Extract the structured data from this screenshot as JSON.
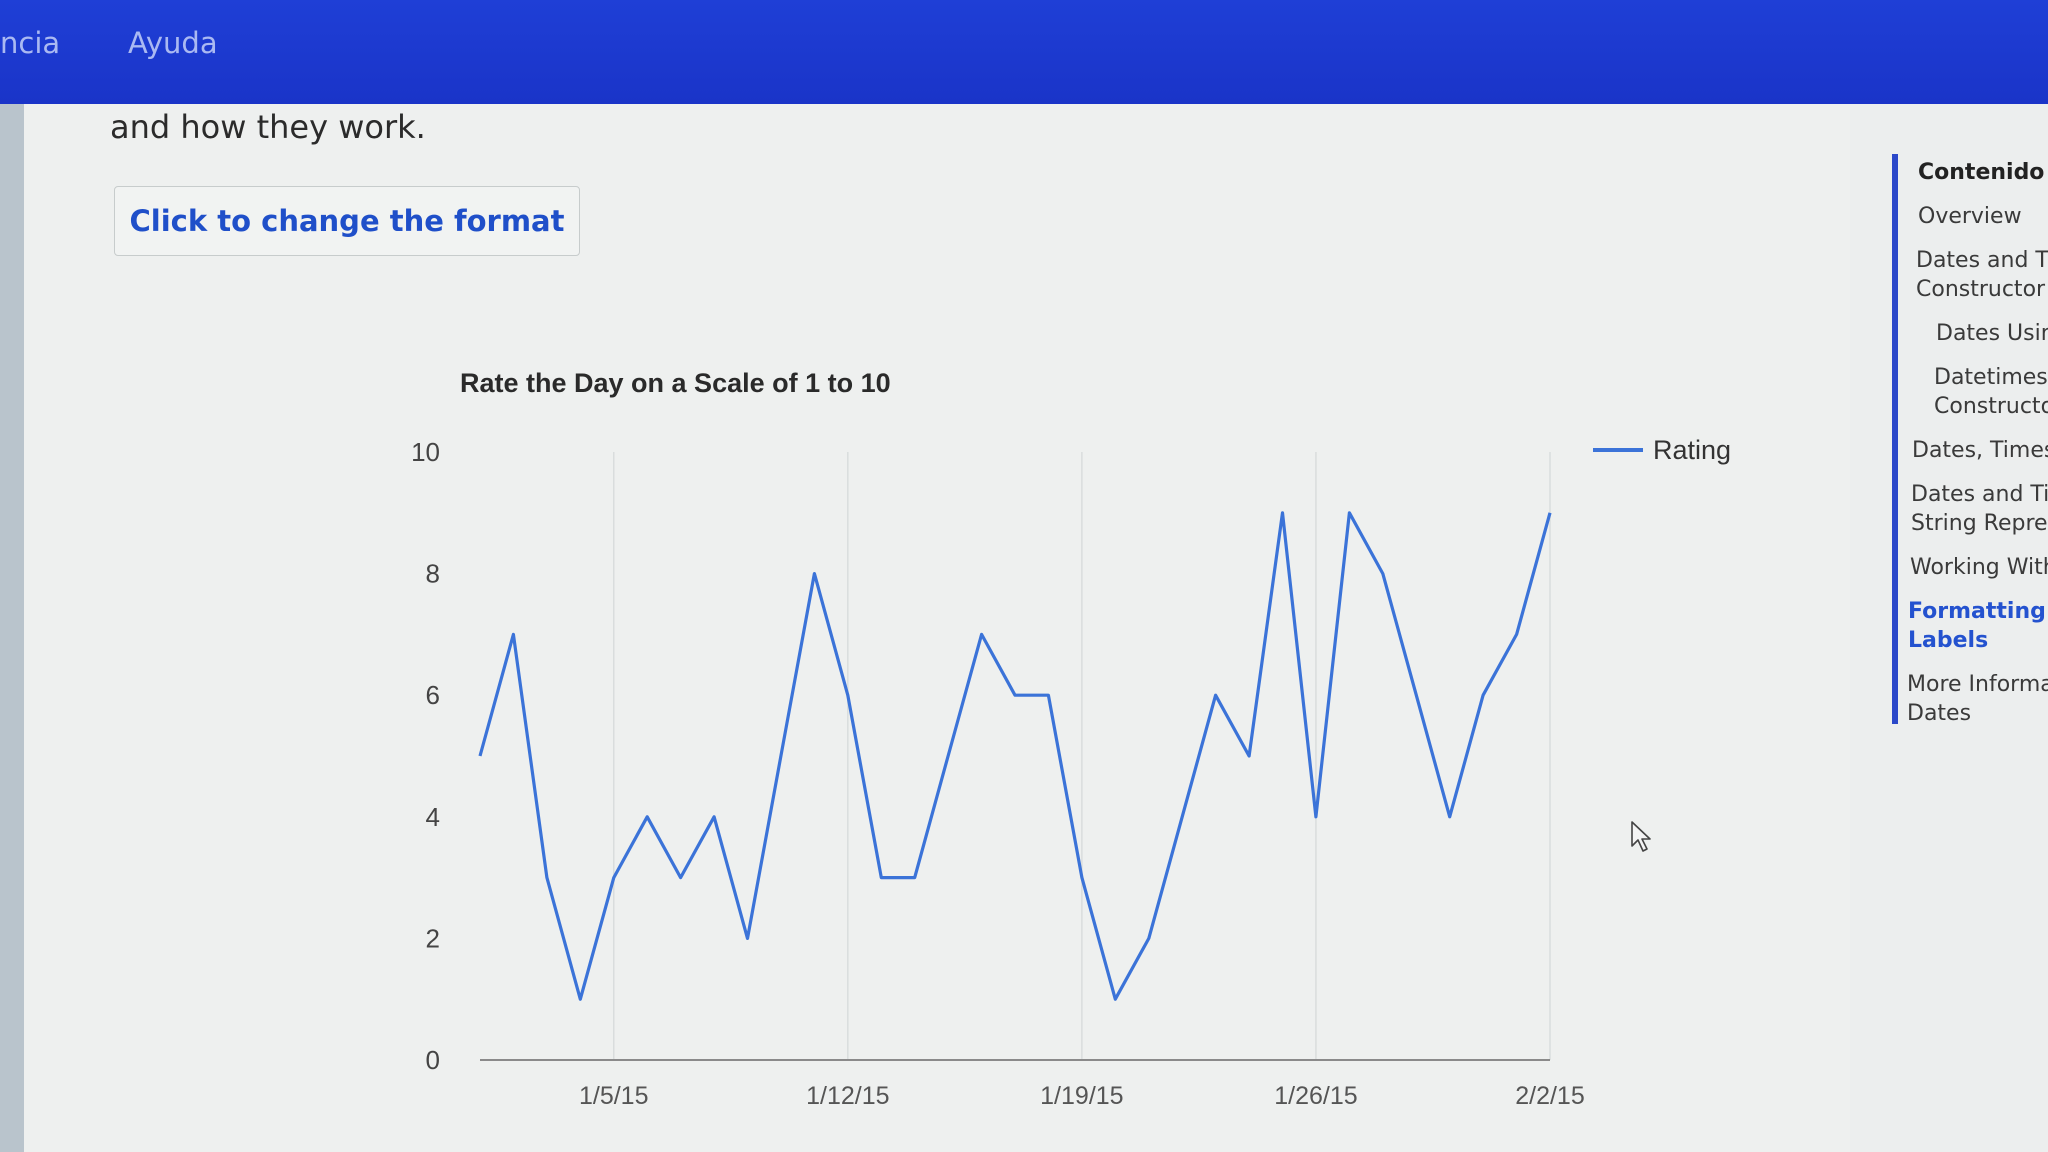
{
  "header": {
    "nav_partial": "ncia",
    "nav_help": "Ayuda"
  },
  "content": {
    "intro_text": "and how they work.",
    "format_button_label": "Click to change the format"
  },
  "chart_data": {
    "type": "line",
    "title": "Rate the Day on a Scale of 1 to 10",
    "xlabel": "",
    "ylabel": "",
    "x": [
      "2015-01-01",
      "2015-01-02",
      "2015-01-03",
      "2015-01-04",
      "2015-01-05",
      "2015-01-06",
      "2015-01-07",
      "2015-01-08",
      "2015-01-09",
      "2015-01-10",
      "2015-01-11",
      "2015-01-12",
      "2015-01-13",
      "2015-01-14",
      "2015-01-15",
      "2015-01-16",
      "2015-01-17",
      "2015-01-18",
      "2015-01-19",
      "2015-01-20",
      "2015-01-21",
      "2015-01-22",
      "2015-01-23",
      "2015-01-24",
      "2015-01-25",
      "2015-01-26",
      "2015-01-27",
      "2015-01-28",
      "2015-01-29",
      "2015-01-30",
      "2015-01-31",
      "2015-02-01",
      "2015-02-02"
    ],
    "series": [
      {
        "name": "Rating",
        "values": [
          5,
          7,
          3,
          1,
          3,
          4,
          3,
          4,
          2,
          5,
          8,
          6,
          3,
          3,
          5,
          7,
          6,
          6,
          3,
          1,
          2,
          4,
          6,
          5,
          9,
          4,
          9,
          8,
          6,
          4,
          6,
          7,
          9
        ]
      }
    ],
    "xticks": [
      "1/5/15",
      "1/12/15",
      "1/19/15",
      "1/26/15",
      "2/2/15"
    ],
    "yticks": [
      "0",
      "2",
      "4",
      "6",
      "8",
      "10"
    ],
    "ylim": [
      0,
      10
    ],
    "grid": "vertical",
    "legend": "right",
    "line_color": "#3b73d8"
  },
  "sidebar": {
    "heading": "Contenido",
    "items": [
      "Overview",
      "Dates and Tir",
      "Constructor",
      "Dates Using",
      "Datetimes U",
      "Constructor",
      "Dates, Times,",
      "Dates and Tim",
      "String Represe",
      "Working With",
      "Formatting Axi",
      "Labels",
      "More Informati",
      "Dates"
    ]
  }
}
